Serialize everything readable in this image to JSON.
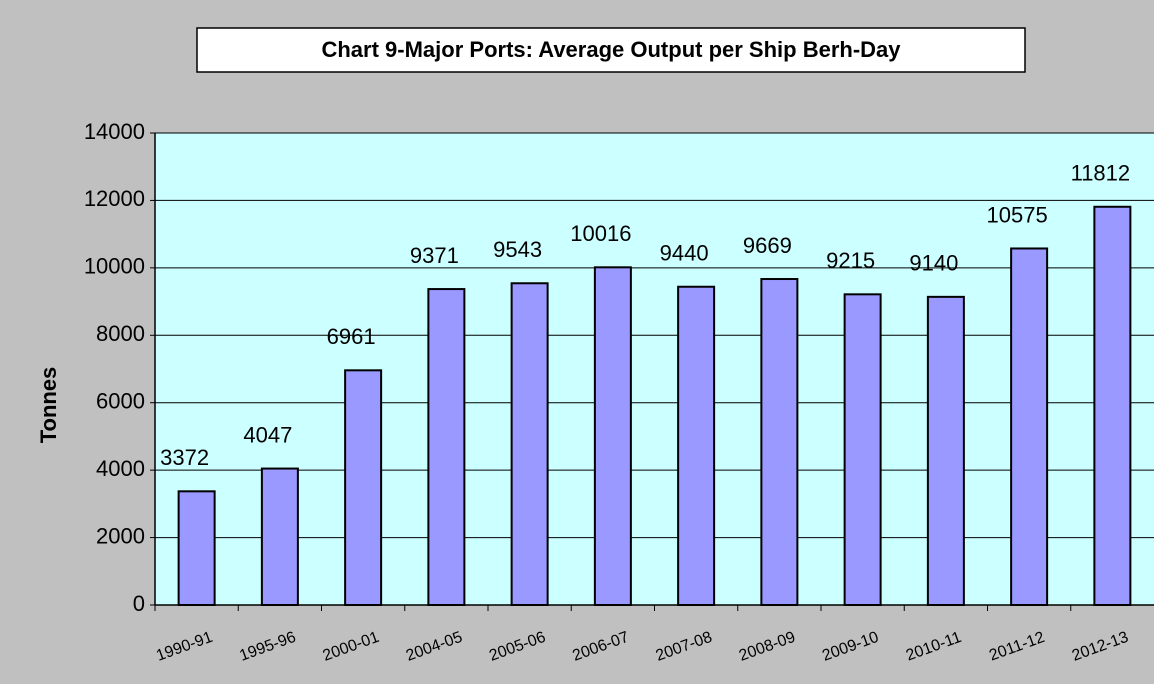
{
  "chart_data": {
    "type": "bar",
    "title": "Chart 9-Major Ports: Average Output per Ship Berh-Day",
    "y_label": "Tonnes",
    "categories": [
      "1990-91",
      "1995-96",
      "2000-01",
      "2004-05",
      "2005-06",
      "2006-07",
      "2007-08",
      "2008-09",
      "2009-10",
      "2010-11",
      "2011-12",
      "2012-13"
    ],
    "values": [
      3372,
      4047,
      6961,
      9371,
      9543,
      10016,
      9440,
      9669,
      9215,
      9140,
      10575,
      11812
    ],
    "color": "#9999ff",
    "ylim": [
      0,
      14000
    ],
    "yticks": [
      0,
      2000,
      4000,
      6000,
      8000,
      10000,
      12000,
      14000
    ],
    "grid": true
  }
}
